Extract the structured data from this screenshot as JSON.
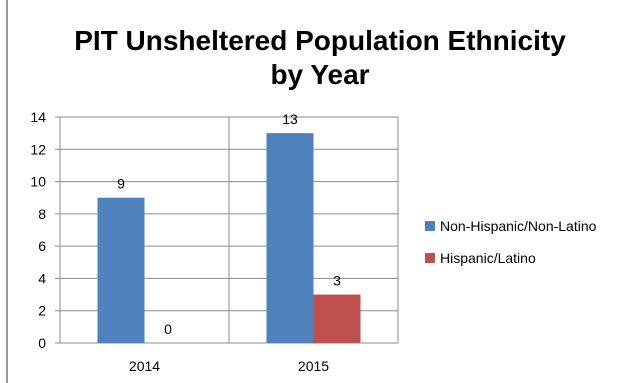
{
  "chart_data": {
    "type": "bar",
    "title_line1": "PIT Unsheltered Population Ethnicity",
    "title_line2": "by Year",
    "categories": [
      "2014",
      "2015"
    ],
    "series": [
      {
        "name": "Non-Hispanic/Non-Latino",
        "color": "#4f81bd",
        "values": [
          9,
          13
        ],
        "labels": [
          "9",
          "13"
        ]
      },
      {
        "name": "Hispanic/Latino",
        "color": "#c0504d",
        "values": [
          0,
          3
        ],
        "labels": [
          "0",
          "3"
        ]
      }
    ],
    "ylim": [
      0,
      14
    ],
    "yticks": [
      "0",
      "2",
      "4",
      "6",
      "8",
      "10",
      "12",
      "14"
    ],
    "grid": true,
    "legend_position": "right"
  }
}
